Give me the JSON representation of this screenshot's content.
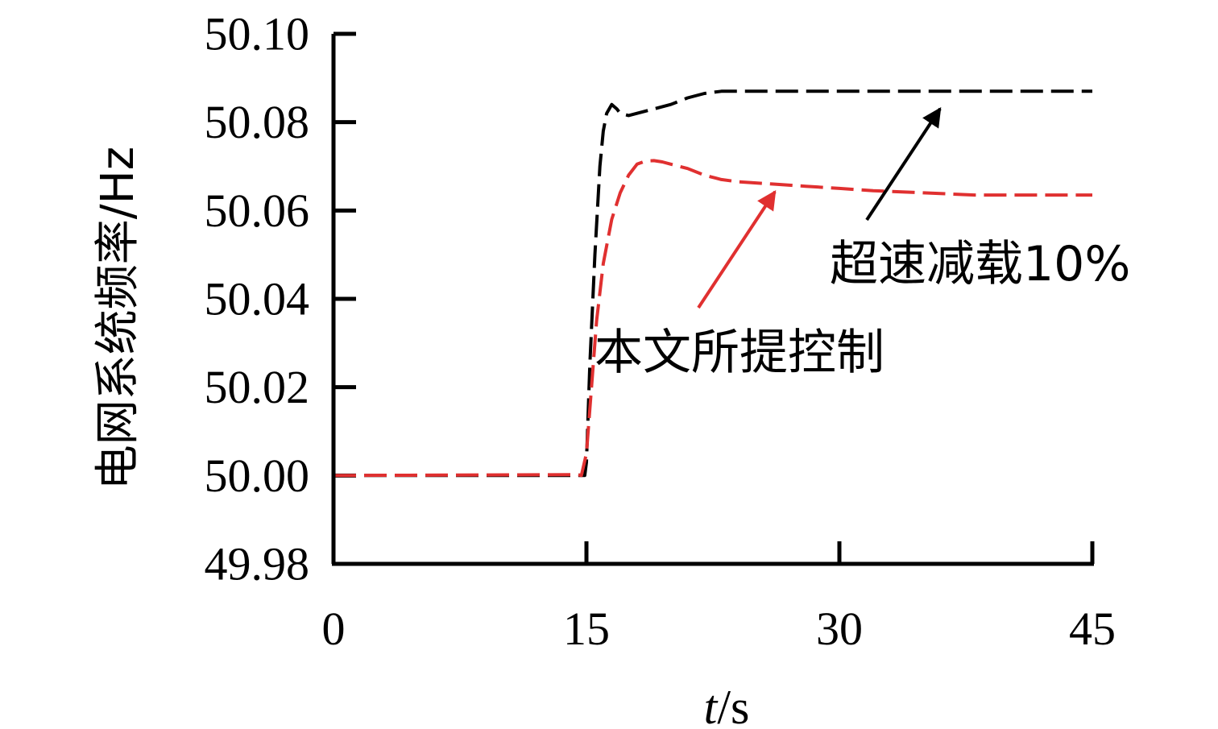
{
  "chart_data": {
    "type": "line",
    "title": "",
    "xlabel": "t/s",
    "xlabel_italic_part": "t",
    "xlabel_rest": "/s",
    "ylabel": "电网系统频率/Hz",
    "xlim": [
      0,
      45
    ],
    "ylim": [
      49.98,
      50.1
    ],
    "xticks": [
      0,
      15,
      30,
      45
    ],
    "xtick_labels": [
      "0",
      "15",
      "30",
      "45"
    ],
    "yticks": [
      49.98,
      50.0,
      50.02,
      50.04,
      50.06,
      50.08,
      50.1
    ],
    "ytick_labels": [
      "49.98",
      "50.00",
      "50.02",
      "50.04",
      "50.06",
      "50.08",
      "50.10"
    ],
    "grid": false,
    "series": [
      {
        "name": "超速减载10%",
        "color": "#000000",
        "dash": "dashed",
        "x": [
          0,
          14.7,
          14.9,
          15.0,
          15.2,
          15.5,
          15.8,
          16.0,
          16.2,
          16.5,
          16.8,
          17.0,
          17.5,
          18.0,
          19.0,
          20.0,
          21.0,
          22.0,
          23.0,
          24.0,
          26.0,
          30.0,
          35.0,
          40.0,
          45.0
        ],
        "y": [
          50.0,
          50.0,
          50.0,
          50.003,
          50.025,
          50.05,
          50.07,
          50.078,
          50.082,
          50.084,
          50.083,
          50.082,
          50.0815,
          50.082,
          50.083,
          50.084,
          50.0855,
          50.0865,
          50.087,
          50.087,
          50.087,
          50.087,
          50.087,
          50.087,
          50.087
        ]
      },
      {
        "name": "本文所提控制",
        "color": "#e03030",
        "dash": "dashed",
        "x": [
          0,
          14.5,
          14.7,
          15.0,
          15.3,
          15.6,
          16.0,
          16.5,
          17.0,
          17.5,
          18.0,
          18.5,
          19.0,
          19.5,
          20.0,
          21.0,
          22.0,
          23.0,
          24.0,
          26.0,
          28.0,
          30.0,
          32.0,
          35.0,
          38.0,
          40.0,
          45.0
        ],
        "y": [
          50.0,
          50.0002,
          50.0,
          50.005,
          50.02,
          50.035,
          50.048,
          50.058,
          50.064,
          50.068,
          50.0705,
          50.0712,
          50.0713,
          50.071,
          50.0705,
          50.0695,
          50.068,
          50.067,
          50.0665,
          50.066,
          50.0655,
          50.065,
          50.0645,
          50.064,
          50.0635,
          50.0635,
          50.0635
        ]
      }
    ],
    "annotations": [
      {
        "text": "超速减载10%",
        "points_to_series": "超速减载10%"
      },
      {
        "text": "本文所提控制",
        "points_to_series": "本文所提控制"
      }
    ]
  }
}
